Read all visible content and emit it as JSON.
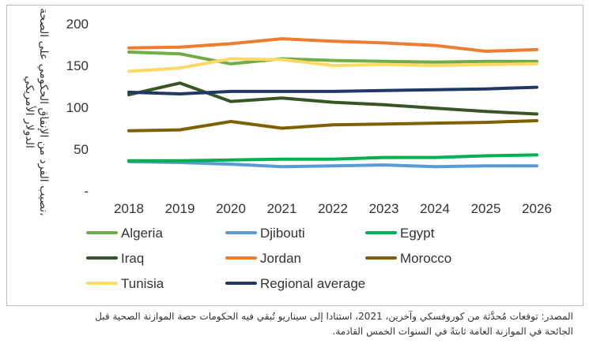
{
  "chart_data": {
    "type": "line",
    "title": "",
    "xlabel": "",
    "ylabel": "نصيب الفرد من الإنفاق الحكومي على الصحة، الدولار الأمريكي",
    "x": [
      "2018",
      "2019",
      "2020",
      "2021",
      "2022",
      "2023",
      "2024",
      "2025",
      "2026"
    ],
    "ylim": [
      0,
      200
    ],
    "yticks": [
      "-",
      "50",
      "100",
      "150",
      "200"
    ],
    "grid": false,
    "legend_position": "bottom",
    "series": [
      {
        "name": "Algeria",
        "color": "#70ad47",
        "values": [
          166,
          164,
          152,
          158,
          156,
          155,
          154,
          155,
          155
        ]
      },
      {
        "name": "Djibouti",
        "color": "#5b9bd5",
        "values": [
          35,
          34,
          32,
          29,
          30,
          31,
          29,
          30,
          30
        ]
      },
      {
        "name": "Egypt",
        "color": "#00b050",
        "values": [
          36,
          36,
          37,
          38,
          38,
          40,
          40,
          42,
          43
        ]
      },
      {
        "name": "Iraq",
        "color": "#375623",
        "values": [
          115,
          129,
          107,
          111,
          106,
          103,
          99,
          95,
          92
        ]
      },
      {
        "name": "Jordan",
        "color": "#ed7d31",
        "values": [
          171,
          172,
          176,
          182,
          179,
          177,
          174,
          167,
          169
        ]
      },
      {
        "name": "Morocco",
        "color": "#7f6000",
        "values": [
          72,
          73,
          83,
          75,
          79,
          80,
          81,
          82,
          84
        ]
      },
      {
        "name": "Tunisia",
        "color": "#ffd966",
        "values": [
          143,
          147,
          158,
          157,
          150,
          151,
          150,
          151,
          152
        ]
      },
      {
        "name": "Regional average",
        "color": "#1f3864",
        "values": [
          118,
          116,
          119,
          119,
          119,
          120,
          121,
          122,
          124
        ]
      }
    ]
  },
  "ylabel_lines": [
    "نصيب الفرد من الإنفاق الحكومي على الصحة،",
    "الدولار الأمريكي"
  ],
  "source_note": {
    "line1": "المصدر: توقعات مُحدَّثة من كوروفسكي وآخرين، 2021، استنادا إلى سيناريو تُبقي فيه الحكومات حصة الموازنة الصحية قبل",
    "line2": "الجائحة في الموازنة العامة ثابتةً في السنوات الخمس القادمة."
  }
}
